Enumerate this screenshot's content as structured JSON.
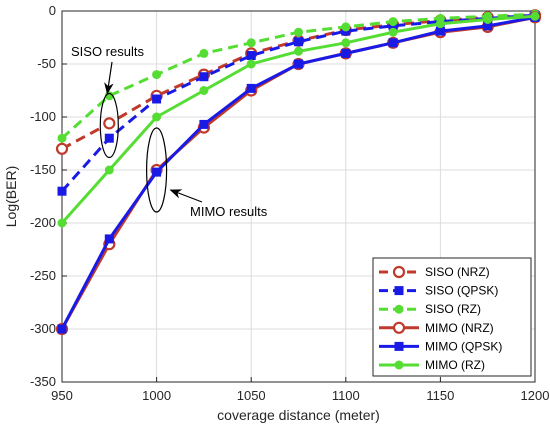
{
  "chart_data": {
    "type": "line",
    "title": "",
    "xlabel": "coverage distance (meter)",
    "ylabel": "Log(BER)",
    "xlim": [
      950,
      1200
    ],
    "ylim": [
      -350,
      0
    ],
    "x_ticks": [
      950,
      1000,
      1050,
      1100,
      1150,
      1200
    ],
    "y_ticks": [
      0,
      -50,
      -100,
      -150,
      -200,
      -250,
      -300,
      -350
    ],
    "grid": true,
    "legend_position": "bottom-right",
    "x": [
      950,
      975,
      1000,
      1025,
      1050,
      1075,
      1100,
      1125,
      1150,
      1175,
      1200
    ],
    "series": [
      {
        "name": "SISO (NRZ)",
        "color": "#c0392b",
        "dash": true,
        "marker": "circle-open",
        "values": [
          -130,
          -106,
          -80,
          -60,
          -40,
          -28,
          -18,
          -13,
          -9,
          -6,
          -4
        ]
      },
      {
        "name": "SISO (QPSK)",
        "color": "#1a1ae6",
        "dash": true,
        "marker": "square",
        "values": [
          -170,
          -120,
          -83,
          -62,
          -42,
          -29,
          -19,
          -14,
          -10,
          -7,
          -4
        ]
      },
      {
        "name": "SISO (RZ)",
        "color": "#55dd33",
        "dash": true,
        "marker": "circle",
        "values": [
          -120,
          -80,
          -60,
          -40,
          -30,
          -20,
          -15,
          -10,
          -7,
          -5,
          -3
        ]
      },
      {
        "name": "MIMO (NRZ)",
        "color": "#c0392b",
        "dash": false,
        "marker": "circle-open",
        "values": [
          -300,
          -220,
          -150,
          -110,
          -75,
          -50,
          -40,
          -30,
          -20,
          -15,
          -6
        ]
      },
      {
        "name": "MIMO (QPSK)",
        "color": "#1a1ae6",
        "dash": false,
        "marker": "square",
        "values": [
          -300,
          -215,
          -152,
          -107,
          -73,
          -50,
          -40,
          -30,
          -19,
          -14,
          -6
        ]
      },
      {
        "name": "MIMO (RZ)",
        "color": "#55dd33",
        "dash": false,
        "marker": "circle",
        "values": [
          -200,
          -150,
          -100,
          -75,
          -50,
          -38,
          -30,
          -20,
          -12,
          -8,
          -5
        ]
      }
    ],
    "annotations": [
      {
        "text": "SISO results",
        "at_x": 975,
        "at_y": -108
      },
      {
        "text": "MIMO results",
        "at_x": 1000,
        "at_y": -150
      }
    ]
  }
}
